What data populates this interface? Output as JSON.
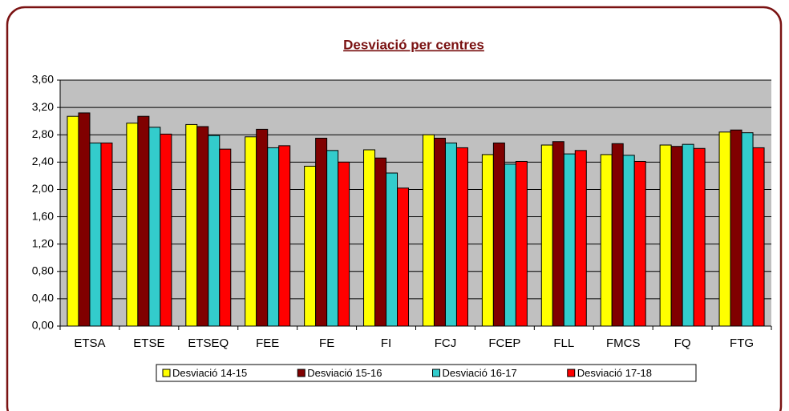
{
  "chart_data": {
    "type": "bar",
    "title": "Desviació per centres",
    "categories": [
      "ETSA",
      "ETSE",
      "ETSEQ",
      "FEE",
      "FE",
      "FI",
      "FCJ",
      "FCEP",
      "FLL",
      "FMCS",
      "FQ",
      "FTG"
    ],
    "series": [
      {
        "name": "Desviació 14-15",
        "color": "#ffff00",
        "values": [
          3.07,
          2.97,
          2.95,
          2.77,
          2.34,
          2.58,
          2.8,
          2.51,
          2.65,
          2.51,
          2.65,
          2.84
        ]
      },
      {
        "name": "Desviació 15-16",
        "color": "#800000",
        "values": [
          3.12,
          3.07,
          2.92,
          2.88,
          2.75,
          2.46,
          2.75,
          2.68,
          2.7,
          2.67,
          2.63,
          2.87
        ]
      },
      {
        "name": "Desviació 16-17",
        "color": "#33cccc",
        "values": [
          2.68,
          2.91,
          2.79,
          2.61,
          2.57,
          2.24,
          2.68,
          2.37,
          2.52,
          2.5,
          2.66,
          2.83
        ]
      },
      {
        "name": "Desviació 17-18",
        "color": "#ff0000",
        "values": [
          2.68,
          2.81,
          2.59,
          2.64,
          2.4,
          2.02,
          2.61,
          2.41,
          2.57,
          2.41,
          2.6,
          2.61
        ]
      }
    ],
    "ylim": [
      0,
      3.6
    ],
    "yticks": [
      {
        "value": 0,
        "label": "0,00"
      },
      {
        "value": 0.4,
        "label": "0,40"
      },
      {
        "value": 0.8,
        "label": "0,80"
      },
      {
        "value": 1.2,
        "label": "1,20"
      },
      {
        "value": 1.6,
        "label": "1,60"
      },
      {
        "value": 2,
        "label": "2,00"
      },
      {
        "value": 2.4,
        "label": "2,40"
      },
      {
        "value": 2.8,
        "label": "2,80"
      },
      {
        "value": 3.2,
        "label": "3,20"
      },
      {
        "value": 3.6,
        "label": "3,60"
      }
    ],
    "grid": true,
    "legend": "bottom"
  }
}
